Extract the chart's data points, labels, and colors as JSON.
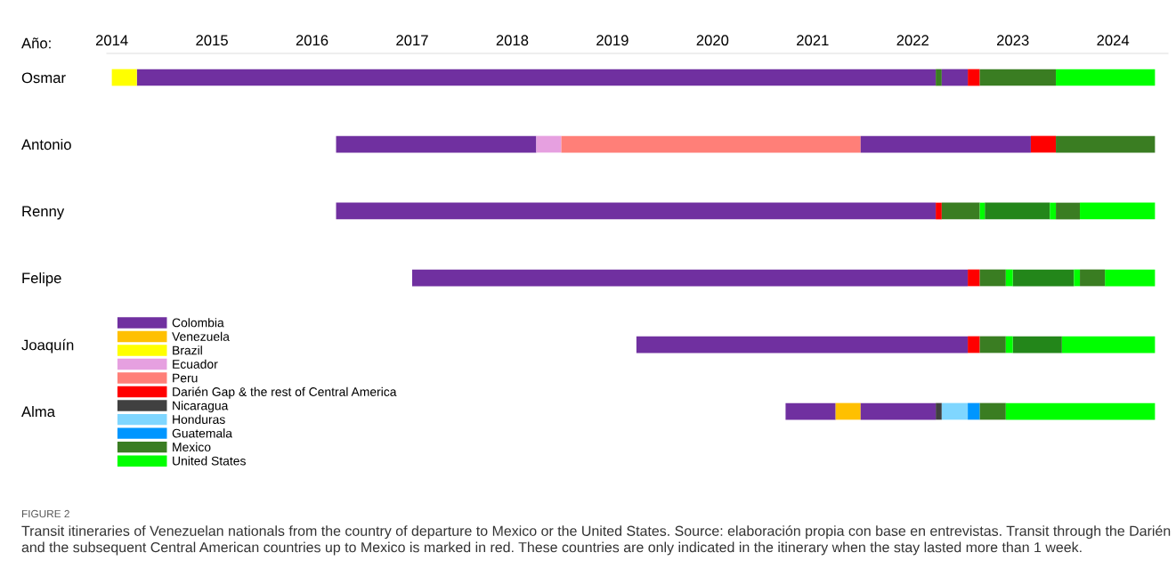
{
  "chart_data": {
    "type": "bar",
    "orientation": "horizontal",
    "xlabel": "Año:",
    "categories": [
      "Osmar",
      "Antonio",
      "Renny",
      "Felipe",
      "Joaquín",
      "Alma"
    ],
    "xlim": [
      2013.95,
      2024.55
    ],
    "xticks": [
      2014,
      2015,
      2016,
      2017,
      2018,
      2019,
      2020,
      2021,
      2022,
      2023,
      2024
    ],
    "legend": "bottom left",
    "grid": false,
    "series": [
      {
        "name": "Colombia",
        "color": "#7030a0",
        "base": [
          2014.25,
          2016.24,
          2016.24,
          2017.0,
          2019.24,
          2020.73
        ],
        "values": [
          7.98,
          2.0,
          5.99,
          5.55,
          3.31,
          0.5
        ]
      },
      {
        "name": "Venezuela",
        "color": "#ffc000",
        "base": [
          null,
          null,
          null,
          null,
          null,
          2021.23
        ],
        "values": [
          null,
          null,
          null,
          null,
          null,
          0.25
        ]
      },
      {
        "name": "Brazil",
        "color": "#ffff00",
        "base": [
          2014.0,
          null,
          null,
          null,
          null,
          null
        ],
        "values": [
          0.25,
          null,
          null,
          null,
          null,
          null
        ]
      },
      {
        "name": "Ecuador",
        "color": "#e6a0e0",
        "base": [
          null,
          2018.24,
          null,
          null,
          null,
          null
        ],
        "values": [
          null,
          0.25,
          null,
          null,
          null,
          null
        ]
      },
      {
        "name": "Peru",
        "color": "#ff7f78",
        "base": [
          null,
          2018.49,
          null,
          null,
          null,
          null
        ],
        "values": [
          null,
          2.99,
          null,
          null,
          null,
          null
        ]
      },
      {
        "name": "Darién Gap & the rest of Central America",
        "color": "#ff0000",
        "base": [
          2022.55,
          2023.18,
          2022.23,
          2022.55,
          2022.55,
          null
        ],
        "values": [
          0.12,
          0.25,
          0.06,
          0.12,
          0.12,
          null
        ]
      },
      {
        "name": "Nicaragua",
        "color": "#404040",
        "base": [
          null,
          null,
          null,
          null,
          null,
          2022.23
        ],
        "values": [
          null,
          null,
          null,
          null,
          null,
          0.06
        ]
      },
      {
        "name": "Honduras",
        "color": "#7fd6ff",
        "base": [
          null,
          null,
          null,
          null,
          null,
          2022.29
        ],
        "values": [
          null,
          null,
          null,
          null,
          null,
          0.26
        ]
      },
      {
        "name": "Guatemala",
        "color": "#0096ff",
        "base": [
          null,
          null,
          null,
          null,
          null,
          2022.55
        ],
        "values": [
          null,
          null,
          null,
          null,
          null,
          0.12
        ]
      },
      {
        "name": "Mexico",
        "color": "#3a7d22",
        "base": [
          2022.23,
          2023.43,
          2022.29,
          2022.67,
          2022.67,
          2022.67
        ],
        "values": [
          0.06,
          0.99,
          0.38,
          0.26,
          0.26,
          0.26
        ]
      },
      {
        "name": "United States",
        "color": "#00ff00",
        "base": [
          2023.43,
          null,
          2023.67,
          2023.92,
          2023.49,
          2022.93
        ],
        "values": [
          0.99,
          null,
          0.75,
          0.5,
          0.93,
          1.49
        ]
      },
      {
        "color": "#7030a0",
        "base": [
          2022.29,
          2021.48,
          null,
          null,
          null,
          2021.48
        ],
        "values": [
          0.26,
          1.7,
          null,
          null,
          null,
          0.75
        ]
      },
      {
        "color": "#3a7d22",
        "base": [
          2022.67,
          null,
          2023.43,
          2023.67,
          null,
          null
        ],
        "values": [
          0.76,
          null,
          0.24,
          0.25,
          null,
          null
        ]
      },
      {
        "color": "#23861a",
        "base": [
          null,
          null,
          2022.72,
          2023.0,
          2023.0,
          null
        ],
        "values": [
          null,
          null,
          0.65,
          0.61,
          0.49,
          null
        ]
      },
      {
        "color": "#00ff00",
        "base": [
          null,
          null,
          2022.67,
          2022.93,
          2022.93,
          null
        ],
        "values": [
          null,
          null,
          0.05,
          0.07,
          0.07,
          null
        ]
      },
      {
        "color": "#00ff00",
        "base": [
          null,
          null,
          2023.37,
          2023.61,
          null,
          null
        ],
        "values": [
          null,
          null,
          0.06,
          0.06,
          null,
          null
        ]
      }
    ],
    "annotations": [
      "FIGURE 2",
      "Transit itineraries of Venezuelan nationals from the country of departure to Mexico or the United States. Source: elaboración propia con base en entrevistas. Transit through the Darién and the subsequent Central American countries up to Mexico is marked in red. These countries are only indicated in the itinerary when the stay lasted more than 1 week."
    ]
  }
}
